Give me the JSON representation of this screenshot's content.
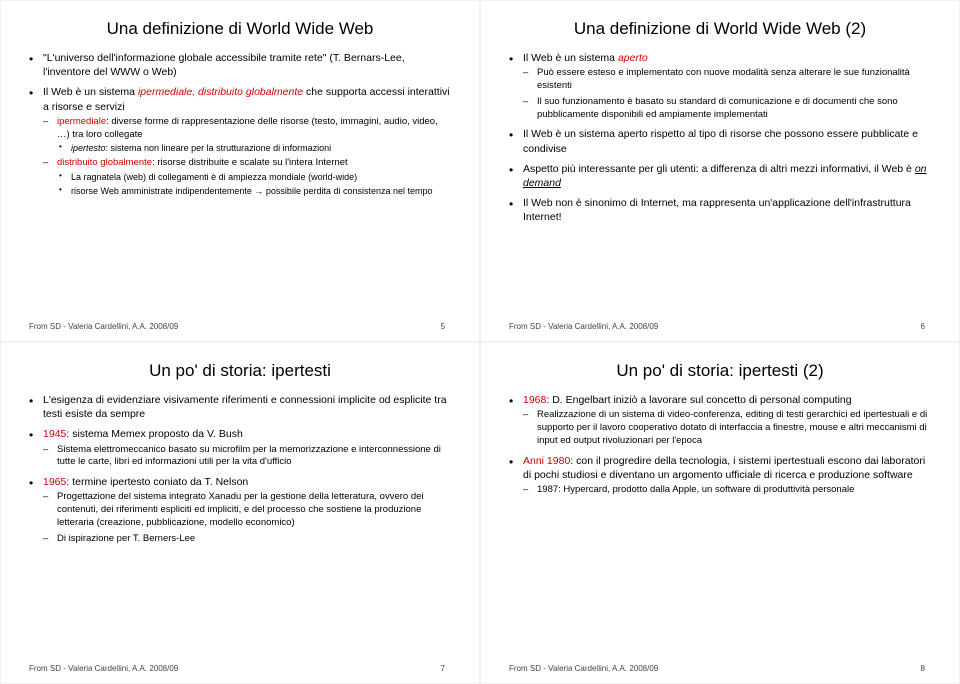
{
  "footer_text": "From SD - Valeria Cardellini, A.A. 2008/09",
  "colors": {
    "accent": "#cc0000",
    "text": "#000000",
    "background": "#ffffff"
  },
  "slides": [
    {
      "page": 5,
      "title": "Una definizione di World Wide Web",
      "b1_a": "\"L'universo dell'informazione globale accessibile tramite rete\" (T. Bernars-Lee, l'inventore del WWW o Web)",
      "b2_a": "Il Web è un sistema ",
      "b2_b": "ipermediale, distribuito globalmente",
      "b2_c": " che supporta accessi interattivi a risorse e servizi",
      "s21_a": "ipermediale",
      "s21_b": ": diverse forme di rappresentazione delle risorse (testo, immagini, audio, video, …) tra loro collegate",
      "s211_a": "ipertesto",
      "s211_b": ": sistema non lineare per la strutturazione di informazioni",
      "s22_a": "distribuito globalmente",
      "s22_b": ": risorse distribuite e scalate su l'intera Internet",
      "s221": "La ragnatela (web) di collegamenti è di ampiezza mondiale (world-wide)",
      "s222": "risorse Web amministrate indipendentemente → possibile perdita di consistenza nel tempo"
    },
    {
      "page": 6,
      "title": "Una definizione di World Wide Web (2)",
      "b1_a": "Il Web è un sistema ",
      "b1_b": "aperto",
      "s11": "Può essere esteso e implementato con nuove modalità senza alterare le sue funzionalità esistenti",
      "s12": "Il suo funzionamento è basato su standard di comunicazione e di documenti che sono pubblicamente disponibili ed ampiamente implementati",
      "b2": "Il Web è un sistema aperto rispetto al tipo di risorse che possono essere pubblicate e condivise",
      "b3_a": "Aspetto più interessante per gli utenti: a differenza di altri mezzi informativi, il Web è ",
      "b3_b": "on demand",
      "b4": "Il Web non è sinonimo di Internet, ma rappresenta un'applicazione dell'infrastruttura Internet!"
    },
    {
      "page": 7,
      "title": "Un po' di storia: ipertesti",
      "b1": "L'esigenza di evidenziare visivamente riferimenti e connessioni implicite od esplicite tra testi esiste da sempre",
      "b2_a": "1945",
      "b2_b": ": sistema Memex proposto da V. Bush",
      "s21": "Sistema elettromeccanico basato su microfilm per la memorizzazione e interconnessione di tutte le carte, libri ed informazioni utili per la vita d'ufficio",
      "b3_a": "1965",
      "b3_b": ": termine ipertesto coniato da T. Nelson",
      "s31": "Progettazione del sistema integrato Xanadu per la gestione della letteratura, ovvero dei contenuti, dei riferimenti espliciti ed impliciti, e del processo che sostiene la produzione letteraria (creazione, pubblicazione, modello economico)",
      "s32": "Di ispirazione per T. Berners-Lee"
    },
    {
      "page": 8,
      "title": "Un po' di storia: ipertesti (2)",
      "b1_a": "1968",
      "b1_b": ": D. Engelbart iniziò a lavorare sul concetto di personal computing",
      "s11": "Realizzazione di un sistema di video-conferenza, editing di testi gerarchici ed ipertestuali e di supporto per il lavoro cooperativo dotato di interfaccia a finestre, mouse e altri meccanismi di input ed output rivoluzionari per l'epoca",
      "b2_a": "Anni 1980",
      "b2_b": ": con il progredire della tecnologia, i sistemi ipertestuali escono dai laboratori di pochi studiosi e diventano un argomento ufficiale di ricerca e produzione software",
      "s21": "1987: Hypercard, prodotto dalla Apple, un software di produttività personale"
    }
  ]
}
